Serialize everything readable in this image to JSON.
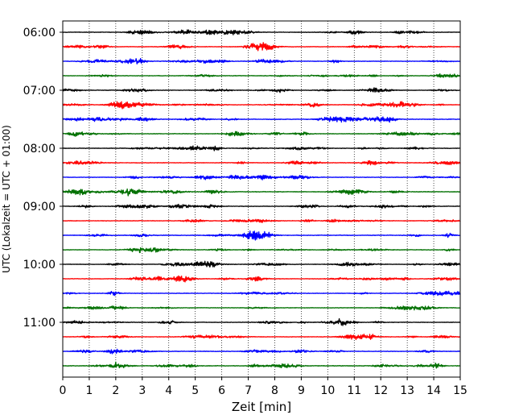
{
  "chart_data": {
    "type": "line",
    "subtype": "helicorder",
    "title": "",
    "xlabel": "Zeit  [min]",
    "ylabel": "UTC (Lokalzeit = UTC + 01:00)",
    "xlim": [
      0,
      15
    ],
    "x_ticks": [
      "0",
      "1",
      "2",
      "3",
      "4",
      "5",
      "6",
      "7",
      "8",
      "9",
      "10",
      "11",
      "12",
      "13",
      "14",
      "15"
    ],
    "grid": "vertical dotted",
    "row_minutes": 15,
    "start_time": "06:00",
    "row_count": 24,
    "y_tick_labels": [
      {
        "row": 0,
        "label": "06:00"
      },
      {
        "row": 4,
        "label": "07:00"
      },
      {
        "row": 8,
        "label": "08:00"
      },
      {
        "row": 12,
        "label": "09:00"
      },
      {
        "row": 16,
        "label": "10:00"
      },
      {
        "row": 20,
        "label": "11:00"
      }
    ],
    "trace_colors": [
      "#000000",
      "#ff0000",
      "#0000ff",
      "#007000"
    ],
    "series": [
      {
        "row": 0,
        "amplitude": 0.35
      },
      {
        "row": 1,
        "amplitude": 0.35
      },
      {
        "row": 2,
        "amplitude": 0.35
      },
      {
        "row": 3,
        "amplitude": 0.35
      },
      {
        "row": 4,
        "amplitude": 0.35
      },
      {
        "row": 5,
        "amplitude": 0.35
      },
      {
        "row": 6,
        "amplitude": 0.4
      },
      {
        "row": 7,
        "amplitude": 0.35
      },
      {
        "row": 8,
        "amplitude": 0.35
      },
      {
        "row": 9,
        "amplitude": 0.35
      },
      {
        "row": 10,
        "amplitude": 0.35
      },
      {
        "row": 11,
        "amplitude": 0.4
      },
      {
        "row": 12,
        "amplitude": 0.35
      },
      {
        "row": 13,
        "amplitude": 0.35
      },
      {
        "row": 14,
        "amplitude": 0.4
      },
      {
        "row": 15,
        "amplitude": 0.35
      },
      {
        "row": 16,
        "amplitude": 0.35
      },
      {
        "row": 17,
        "amplitude": 0.35
      },
      {
        "row": 18,
        "amplitude": 0.35
      },
      {
        "row": 19,
        "amplitude": 0.35
      },
      {
        "row": 20,
        "amplitude": 0.35
      },
      {
        "row": 21,
        "amplitude": 0.35
      },
      {
        "row": 22,
        "amplitude": 0.4
      },
      {
        "row": 23,
        "amplitude": 0.4
      }
    ]
  }
}
